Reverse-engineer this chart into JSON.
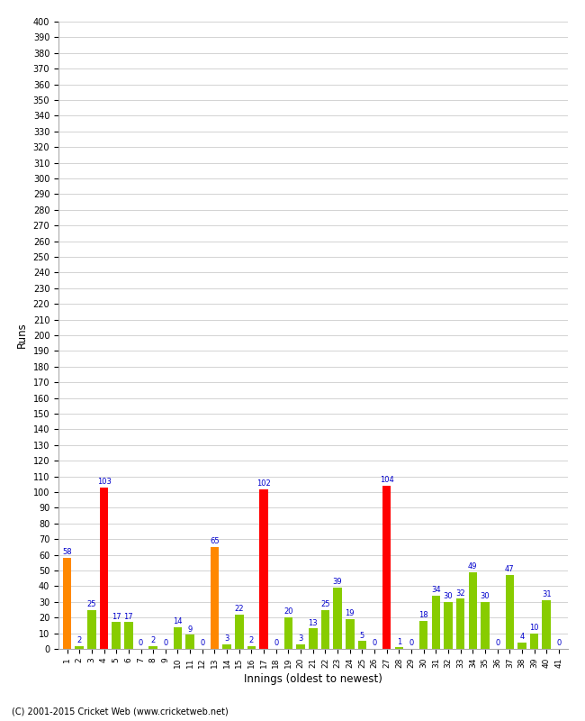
{
  "xlabel": "Innings (oldest to newest)",
  "ylabel": "Runs",
  "values": [
    58,
    2,
    25,
    103,
    17,
    17,
    0,
    2,
    0,
    14,
    9,
    0,
    65,
    3,
    22,
    2,
    102,
    0,
    20,
    3,
    13,
    25,
    39,
    19,
    5,
    0,
    104,
    1,
    0,
    18,
    34,
    30,
    32,
    49,
    30,
    0,
    47,
    4,
    10,
    31,
    0
  ],
  "innings": [
    1,
    2,
    3,
    4,
    5,
    6,
    7,
    8,
    9,
    10,
    11,
    12,
    13,
    14,
    15,
    16,
    17,
    18,
    19,
    20,
    21,
    22,
    23,
    24,
    25,
    26,
    27,
    28,
    29,
    30,
    31,
    32,
    33,
    34,
    35,
    36,
    37,
    38,
    39,
    40,
    41
  ],
  "century_threshold": 100,
  "fifty_threshold": 50,
  "color_century": "#ff0000",
  "color_fifty": "#ff8800",
  "color_normal": "#88cc00",
  "ylim": [
    0,
    400
  ],
  "ytick_step": 10,
  "background_color": "#ffffff",
  "grid_color": "#cccccc",
  "label_color": "#0000cc",
  "footer": "(C) 2001-2015 Cricket Web (www.cricketweb.net)"
}
